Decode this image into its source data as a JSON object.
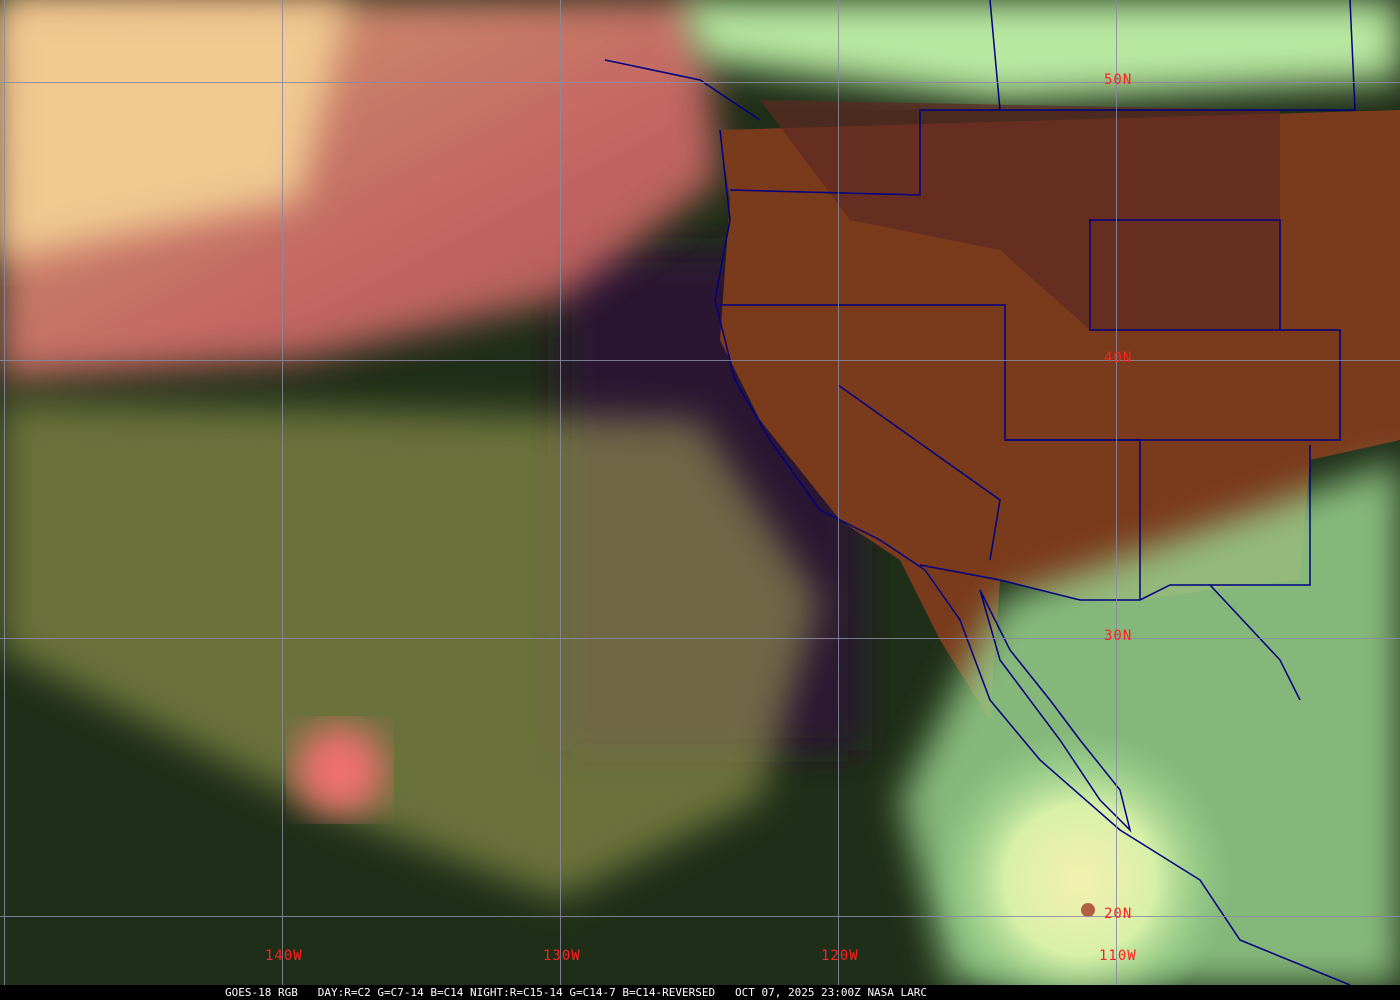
{
  "image": {
    "type": "satellite-rgb-composite",
    "colors": {
      "grid": "#8a8aa0",
      "labels": "#ff2020",
      "borders": "#000080",
      "caption_bg": "#000000",
      "caption_text": "#ffffff"
    }
  },
  "grid_labels": {
    "latitudes": [
      "50N",
      "40N",
      "30N",
      "20N"
    ],
    "longitudes": [
      "140W",
      "130W",
      "120W",
      "110W"
    ]
  },
  "caption": {
    "product": "GOES-18 RGB",
    "recipe": "DAY:R=C2 G=C7-14 B=C14 NIGHT:R=C15-14 G=C14-7 B=C14-REVERSED",
    "timestamp": "OCT 07, 2025 23:00Z",
    "source": "NASA LARC"
  }
}
